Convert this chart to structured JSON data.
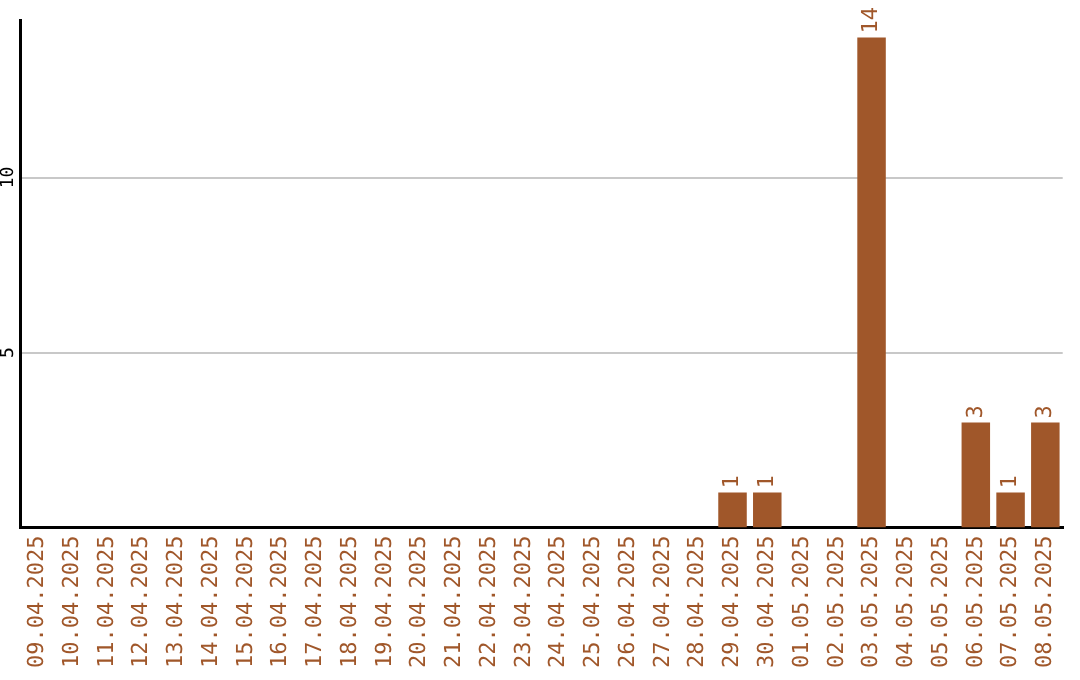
{
  "chart_data": {
    "type": "bar",
    "categories": [
      "09.04.2025",
      "10.04.2025",
      "11.04.2025",
      "12.04.2025",
      "13.04.2025",
      "14.04.2025",
      "15.04.2025",
      "16.04.2025",
      "17.04.2025",
      "18.04.2025",
      "19.04.2025",
      "20.04.2025",
      "21.04.2025",
      "22.04.2025",
      "23.04.2025",
      "24.04.2025",
      "25.04.2025",
      "26.04.2025",
      "27.04.2025",
      "28.04.2025",
      "29.04.2025",
      "30.04.2025",
      "01.05.2025",
      "02.05.2025",
      "03.05.2025",
      "04.05.2025",
      "05.05.2025",
      "06.05.2025",
      "07.05.2025",
      "08.05.2025"
    ],
    "values": [
      0,
      0,
      0,
      0,
      0,
      0,
      0,
      0,
      0,
      0,
      0,
      0,
      0,
      0,
      0,
      0,
      0,
      0,
      0,
      0,
      1,
      1,
      0,
      0,
      14,
      0,
      0,
      3,
      1,
      3
    ],
    "value_labels": [
      null,
      null,
      null,
      null,
      null,
      null,
      null,
      null,
      null,
      null,
      null,
      null,
      null,
      null,
      null,
      null,
      null,
      null,
      null,
      null,
      "1",
      "1",
      null,
      null,
      "14",
      null,
      null,
      "3",
      "1",
      "3"
    ],
    "color": "#a0572a",
    "ylim": [
      0,
      14.5
    ],
    "yticks": [
      5,
      10
    ],
    "grid": "y"
  }
}
